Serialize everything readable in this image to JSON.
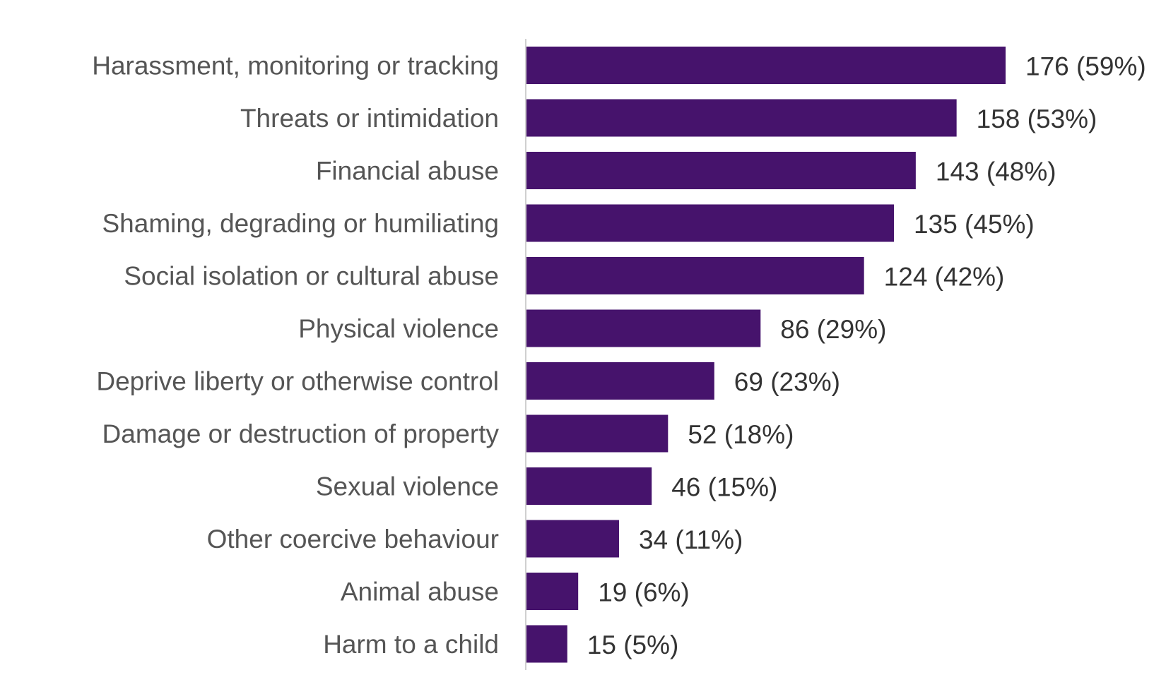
{
  "chart_data": {
    "type": "bar",
    "orientation": "horizontal",
    "categories": [
      "Harassment, monitoring or tracking",
      "Threats or intimidation",
      "Financial abuse",
      "Shaming, degrading or humiliating",
      "Social isolation or cultural abuse",
      "Physical violence",
      "Deprive liberty or otherwise control",
      "Damage or destruction of property",
      "Sexual violence",
      "Other coercive behaviour",
      "Animal abuse",
      "Harm to a child"
    ],
    "values": [
      176,
      158,
      143,
      135,
      124,
      86,
      69,
      52,
      46,
      34,
      19,
      15
    ],
    "data_labels": [
      "176 (59%)",
      "158 (53%)",
      "143 (48%)",
      "135 (45%)",
      "124 (42%)",
      "86 (29%)",
      "69 (23%)",
      "52 (18%)",
      "46 (15%)",
      "34 (11%)",
      "19 (6%)",
      "15 (5%)"
    ],
    "title": "",
    "xlabel": "",
    "ylabel": "",
    "xlim": [
      0,
      176
    ],
    "grid": false,
    "legend": "none",
    "colors": {
      "bar": "#46136C",
      "axis": "#D0D0D0"
    }
  }
}
